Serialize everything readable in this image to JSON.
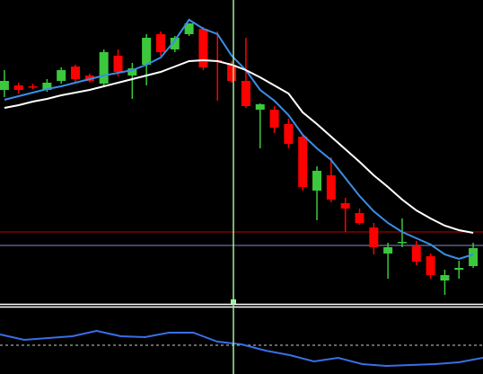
{
  "chart_data": [
    {
      "type": "candlestick",
      "categories": [
        null,
        null,
        null,
        null,
        null,
        null,
        null,
        null,
        null,
        null,
        null,
        null,
        null,
        null,
        null,
        null,
        null,
        null,
        null,
        null,
        null,
        null,
        null,
        null,
        null,
        null,
        null,
        null,
        null,
        null,
        null,
        null,
        null,
        null
      ],
      "open": [
        237,
        242,
        241,
        237,
        247,
        263,
        253,
        244,
        275,
        253,
        265,
        299,
        282,
        299,
        305,
        270,
        265,
        247,
        215,
        215,
        199,
        185,
        125,
        142,
        111,
        100,
        84,
        55,
        67,
        63,
        52,
        25,
        37,
        41
      ],
      "high": [
        259,
        245,
        244,
        249,
        262,
        265,
        255,
        282,
        282,
        267,
        299,
        302,
        297,
        311,
        307,
        302,
        269,
        295,
        222,
        219,
        205,
        187,
        152,
        162,
        117,
        105,
        89,
        67,
        94,
        69,
        55,
        37,
        47,
        67
      ],
      "low": [
        229,
        233,
        238,
        235,
        244,
        245,
        245,
        242,
        252,
        227,
        242,
        275,
        279,
        297,
        259,
        225,
        245,
        217,
        172,
        189,
        172,
        125,
        92,
        112,
        79,
        87,
        54,
        27,
        62,
        42,
        27,
        9,
        27,
        39
      ],
      "close": [
        247,
        237,
        240,
        245,
        259,
        249,
        247,
        279,
        257,
        261,
        295,
        279,
        295,
        311,
        262,
        269,
        247,
        219,
        221,
        195,
        177,
        129,
        147,
        115,
        105,
        89,
        62,
        62,
        68,
        46,
        31,
        31,
        39,
        61
      ],
      "up_color": "#3cc83c",
      "down_color": "#ff0000",
      "series": [
        {
          "color": "#3a8ee6",
          "values": [
            226,
            230,
            234,
            238,
            241,
            245,
            249,
            253,
            256,
            259,
            265,
            273,
            292,
            315,
            305,
            299,
            275,
            259,
            237,
            225,
            209,
            187,
            172,
            159,
            139,
            119,
            102,
            89,
            79,
            72,
            65,
            54,
            49,
            54
          ]
        },
        {
          "color": "#ffffff",
          "values": [
            217,
            220,
            224,
            227,
            231,
            234,
            237,
            241,
            245,
            249,
            253,
            257,
            263,
            269,
            270,
            269,
            265,
            259,
            251,
            242,
            233,
            212,
            199,
            185,
            171,
            157,
            142,
            129,
            115,
            103,
            94,
            86,
            81,
            78
          ]
        }
      ],
      "levels": [
        {
          "value": 79,
          "color": "#c00000"
        },
        {
          "value": 64,
          "color": "#8a8ac8"
        }
      ],
      "ylim": [
        0,
        337
      ]
    },
    {
      "type": "line",
      "categories": [
        null,
        null,
        null,
        null,
        null,
        null,
        null,
        null,
        null,
        null,
        null,
        null,
        null,
        null,
        null,
        null,
        null,
        null,
        null,
        null,
        null
      ],
      "values": [
        44,
        38,
        40,
        42,
        48,
        42,
        41,
        46,
        46,
        36,
        33,
        26,
        21,
        14,
        18,
        11,
        9,
        10,
        11,
        13,
        18
      ],
      "color": "#3a6ee6",
      "levels": [
        {
          "value": 32,
          "color": "#cccccc"
        }
      ],
      "ylim": [
        0,
        74
      ]
    }
  ]
}
